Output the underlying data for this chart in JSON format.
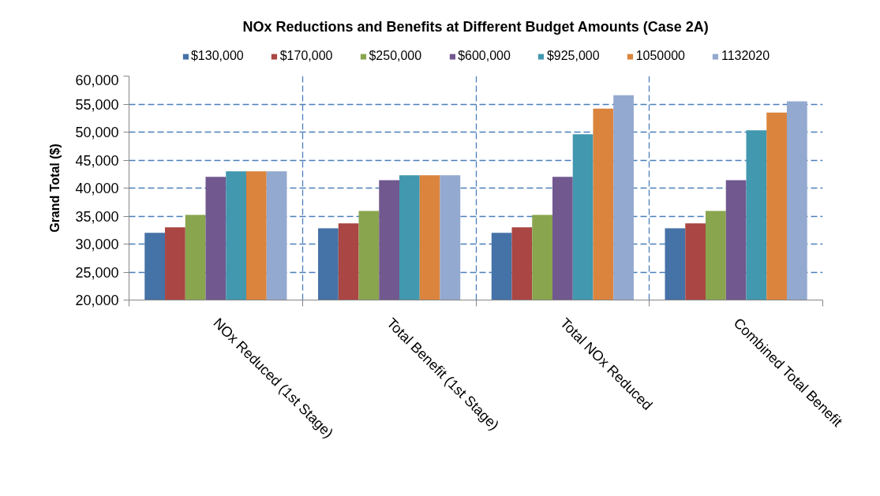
{
  "chart_data": {
    "type": "bar",
    "title": "NOx Reductions and Benefits at Different Budget Amounts (Case 2A)",
    "ylabel": "Grand Total ($)",
    "categories": [
      "NOx Reduced (1st Stage)",
      "Total Benefit (1st Stage)",
      "Total NOx Reduced",
      "Combined Total Benefit"
    ],
    "series": [
      {
        "name": "$130,000",
        "color": "#4572a7",
        "values": [
          32000,
          32800,
          32000,
          32800
        ]
      },
      {
        "name": "$170,000",
        "color": "#aa4643",
        "values": [
          33000,
          33700,
          33000,
          33700
        ]
      },
      {
        "name": "$250,000",
        "color": "#89a54e",
        "values": [
          35200,
          35900,
          35200,
          35900
        ]
      },
      {
        "name": "$600,000",
        "color": "#71588f",
        "values": [
          42000,
          41400,
          42000,
          41400
        ]
      },
      {
        "name": "$925,000",
        "color": "#4198af",
        "values": [
          43000,
          42300,
          49600,
          50300
        ]
      },
      {
        "name": "1050000",
        "color": "#db843d",
        "values": [
          43000,
          42300,
          54200,
          53500
        ]
      },
      {
        "name": "1132020",
        "color": "#93a9cf",
        "values": [
          43000,
          42300,
          56600,
          55500
        ]
      }
    ],
    "ylim": [
      20000,
      60000
    ],
    "yticks": [
      {
        "value": 20000,
        "label": "20,000"
      },
      {
        "value": 25000,
        "label": "25,000"
      },
      {
        "value": 30000,
        "label": "30,000"
      },
      {
        "value": 35000,
        "label": "35,000"
      },
      {
        "value": 40000,
        "label": "40,000"
      },
      {
        "value": 45000,
        "label": "45,000"
      },
      {
        "value": 50000,
        "label": "50,000"
      },
      {
        "value": 55000,
        "label": "55,000"
      },
      {
        "value": 60000,
        "label": "60,000"
      }
    ],
    "grid": true,
    "legend": "top"
  }
}
